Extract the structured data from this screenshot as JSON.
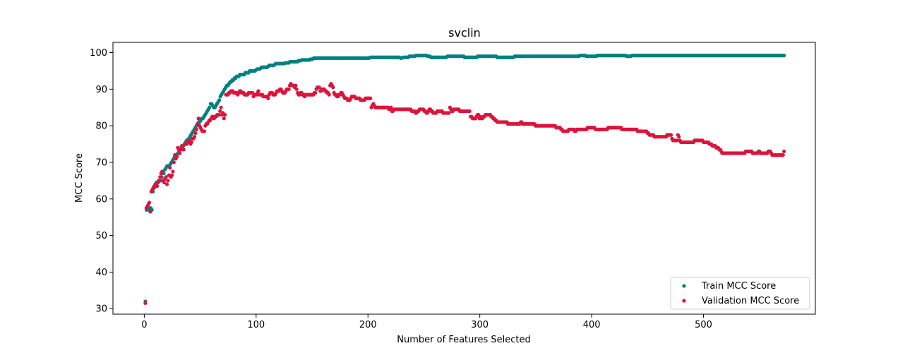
{
  "chart_data": {
    "type": "scatter",
    "title": "svclin",
    "xlabel": "Number of Features Selected",
    "ylabel": "MCC Score",
    "xlim": [
      -28,
      600
    ],
    "ylim": [
      28.5,
      102.8
    ],
    "x_ticks": [
      0,
      100,
      200,
      300,
      400,
      500
    ],
    "x_tick_labels": [
      "0",
      "100",
      "200",
      "300",
      "400",
      "500"
    ],
    "y_ticks": [
      30,
      40,
      50,
      60,
      70,
      80,
      90,
      100
    ],
    "y_tick_labels": [
      "30",
      "40",
      "50",
      "60",
      "70",
      "80",
      "90",
      "100"
    ],
    "grid": false,
    "legend_position": "lower-right",
    "x_range": [
      1,
      572
    ],
    "series": [
      {
        "name": "Train MCC Score",
        "color": "#008080",
        "values": [
          32,
          57,
          57.5,
          57,
          57.5,
          57.5,
          57,
          62,
          63,
          64,
          64.5,
          64.5,
          65,
          65,
          65,
          66,
          67,
          67,
          68,
          68.5,
          69,
          69,
          69,
          69.5,
          70,
          70.5,
          71,
          71.5,
          72,
          72,
          72.5,
          73,
          73.5,
          74,
          74,
          74.5,
          75,
          75.5,
          76,
          76,
          76.5,
          77,
          77.5,
          78,
          78.5,
          79,
          79.5,
          80,
          80.5,
          81,
          81,
          81.5,
          82,
          82,
          82.5,
          83,
          83.5,
          84,
          84.5,
          85,
          86,
          86,
          85.5,
          85,
          85,
          85.5,
          86,
          86.5,
          87,
          88,
          88.5,
          89,
          89.5,
          90,
          90.5,
          91,
          91,
          91.5,
          92,
          92,
          92.5,
          92.5,
          93,
          93,
          93.5,
          93.5,
          93.5,
          94,
          94,
          94,
          94,
          94,
          94.5,
          94.5,
          94.5,
          94.5,
          95,
          95,
          95,
          95,
          95,
          95,
          95.3,
          95.5,
          95.5,
          95.5,
          95.7,
          96,
          96,
          96,
          96,
          96,
          96,
          96.2,
          96.5,
          96.5,
          96.5,
          96.5,
          96.5,
          96.7,
          97,
          97,
          97,
          97,
          97,
          97,
          97,
          97,
          97,
          97.2,
          97.2,
          97.2,
          97.2,
          97.5,
          97.5,
          97.5,
          97.5,
          97.5,
          97.5,
          97.5,
          97.5,
          97.8,
          97.8,
          97.8,
          98,
          98,
          98,
          98,
          98,
          98,
          98,
          98,
          98.2,
          98.2,
          98.2,
          98.5,
          98.5,
          98.5,
          98.5,
          98.5,
          98.5,
          98.5,
          98.5,
          98.5,
          98.5,
          98.5,
          98.5,
          98.5,
          98.5,
          98.5,
          98.5,
          98.5,
          98.5,
          98.5,
          98.5,
          98.5,
          98.5,
          98.5,
          98.5,
          98.5,
          98.5,
          98.5,
          98.5,
          98.5,
          98.5,
          98.5,
          98.5,
          98.5,
          98.5,
          98.5,
          98.5,
          98.5,
          98.5,
          98.5,
          98.5,
          98.5,
          98.5,
          98.5,
          98.5,
          98.5,
          98.5,
          98.5,
          98.5,
          98.5,
          98.5,
          98.5,
          98.5,
          98.7,
          98.7,
          98.7,
          98.7,
          98.7,
          98.7,
          98.7,
          98.7,
          98.7,
          98.7,
          98.7,
          98.7,
          98.7,
          98.7,
          98.7,
          98.7,
          98.7,
          98.7,
          98.7,
          98.7,
          98.7,
          98.7,
          98.7,
          98.7,
          98.7,
          98.7,
          98.7,
          98.7,
          98.5,
          98.5,
          98.7,
          98.7,
          98.7,
          98.7,
          98.7,
          98.7,
          99,
          99,
          99,
          99,
          99,
          99,
          99.2,
          99.2,
          99.2,
          99.2,
          99.2,
          99.2,
          99.2,
          99.2,
          99.2,
          99.2,
          99.2,
          99,
          99,
          99,
          98.7,
          98.7,
          98.7,
          98.7,
          98.7,
          98.7,
          98.7,
          98.7,
          98.7,
          98.7,
          98.7,
          98.7,
          98.7,
          98.7,
          98.7,
          99,
          99,
          99,
          99,
          99,
          99,
          99,
          99,
          99,
          99,
          99,
          99,
          99,
          99,
          99,
          99,
          98.7,
          98.7,
          98.7,
          98.7,
          98.7,
          98.7,
          98.7,
          98.7,
          98.7,
          98.7,
          98.7,
          98.7,
          99,
          99,
          99,
          99,
          99,
          99,
          99,
          99,
          99,
          99,
          99,
          99,
          99,
          99,
          99,
          99,
          99,
          99,
          98.7,
          98.7,
          98.7,
          98.7,
          98.7,
          98.7,
          98.7,
          98.7,
          98.7,
          98.7,
          98.7,
          98.7,
          98.7,
          98.7,
          98.7,
          98.7,
          99,
          99,
          99,
          99,
          99,
          99,
          99,
          99,
          99,
          99,
          99,
          99,
          99,
          99,
          99,
          99,
          99,
          99,
          99,
          99,
          99,
          99,
          99,
          99,
          99,
          99,
          99,
          99,
          99,
          99,
          99,
          99,
          99,
          99,
          99,
          99,
          99,
          99,
          99,
          99,
          99,
          99,
          99,
          99,
          99,
          99,
          99,
          99,
          99,
          99,
          99,
          99,
          99,
          99,
          99,
          99,
          99,
          99,
          99,
          99,
          99.2,
          99.2,
          99.2,
          99.2,
          99.2,
          99.2,
          99,
          99,
          99,
          99,
          99,
          99,
          99,
          99,
          99,
          99,
          99.2,
          99.2,
          99.2,
          99.2,
          99.2,
          99.2,
          99.2,
          99.2,
          99.2,
          99.2,
          99.2,
          99.2,
          99.2,
          99.2,
          99.2,
          99.2,
          99.2,
          99.2,
          99.2,
          99.2,
          99.2,
          99.2,
          99.2,
          99.2,
          99.2,
          99.2,
          99.2,
          99,
          99,
          99,
          99,
          99,
          99.2,
          99.2,
          99.2,
          99.2,
          99.2,
          99.2,
          99.2,
          99.2,
          99.2,
          99.2,
          99.2,
          99.2,
          99.2,
          99.2,
          99.2,
          99.2,
          99.2,
          99.2,
          99.2,
          99.2,
          99.2,
          99.2,
          99.2,
          99.2,
          99.2,
          99.2,
          99.2,
          99.2,
          99.2,
          99.2,
          99.2,
          99.2,
          99.2,
          99.2,
          99.2,
          99.2,
          99.2,
          99.2,
          99.2,
          99.2,
          99.2,
          99.2,
          99.2,
          99.2,
          99.2,
          99.2,
          99.2,
          99.2,
          99.2,
          99.2,
          99.2,
          99.2,
          99.2,
          99.2,
          99.2,
          99.2,
          99.2,
          99.2,
          99.2,
          99.2,
          99.2,
          99.2,
          99.2,
          99.2,
          99.2,
          99.2,
          99.2,
          99.2,
          99.2,
          99.2,
          99.2,
          99.2,
          99.2,
          99.2,
          99.2,
          99.2,
          99.2,
          99.2,
          99.2,
          99.2,
          99.2,
          99.2,
          99.2,
          99.2,
          99.2,
          99.2,
          99.2,
          99.2,
          99.2,
          99.2,
          99.2,
          99.2,
          99.2,
          99.2,
          99.2,
          99.2,
          99.2,
          99.2,
          99.2,
          99.2,
          99.2,
          99.2,
          99.2,
          99.2,
          99.2,
          99.2,
          99.2,
          99.2,
          99.2,
          99.2,
          99.2,
          99.2,
          99.2,
          99.2,
          99.2,
          99.2,
          99.2,
          99.2,
          99.2,
          99.2,
          99.2,
          99.2,
          99.2,
          99.2,
          99.2,
          99.2,
          99.2,
          99.2,
          99.2,
          99.2,
          99.2,
          99.2,
          99.2,
          99.2,
          99.2,
          99.2,
          99.2,
          99.2,
          99.2,
          99.2,
          99.2
        ]
      },
      {
        "name": "Validation MCC Score",
        "color": "#dc143c",
        "values": [
          31.5,
          57.5,
          58,
          58.5,
          59,
          56.5,
          62,
          62.5,
          63,
          63.5,
          63.5,
          64,
          63.5,
          64.5,
          65,
          66,
          67,
          67.5,
          65,
          64.5,
          65.5,
          66,
          64,
          65,
          66.5,
          68.5,
          66,
          66.5,
          67.5,
          70,
          72,
          71,
          71.5,
          74,
          73.5,
          72.5,
          73.5,
          74.5,
          73.5,
          73.5,
          75,
          75,
          75,
          75.5,
          75.5,
          76,
          75,
          75.5,
          76.5,
          76.5,
          77,
          78,
          79,
          80.5,
          82,
          80,
          79.5,
          79,
          78.5,
          78.5,
          78.5,
          80,
          80.5,
          80.5,
          81,
          81.5,
          81.5,
          82,
          82.5,
          82.5,
          82,
          82.5,
          82.5,
          83,
          83,
          83,
          84,
          85,
          83,
          83.5,
          82,
          83,
          88.5,
          88.5,
          88.5,
          89,
          89,
          89.5,
          89.5,
          89.5,
          89,
          89,
          89,
          89,
          88.5,
          89,
          89.5,
          89.5,
          89,
          89,
          89,
          88.5,
          88.5,
          88.5,
          88.5,
          89,
          89,
          89,
          89,
          89,
          88,
          88.5,
          88.5,
          88.5,
          89,
          89.5,
          88.5,
          88.5,
          88.5,
          88.5,
          88,
          88,
          88,
          88,
          88,
          87.5,
          88.5,
          89,
          89,
          89,
          88.5,
          88.5,
          88.5,
          89,
          89.5,
          89.5,
          89.5,
          90,
          90,
          89.5,
          89,
          89,
          89,
          89.5,
          90,
          90,
          90,
          91,
          91.5,
          91,
          91,
          91,
          90.5,
          91,
          90,
          89,
          88.5,
          88.5,
          89,
          89,
          88.5,
          88.5,
          88,
          88.5,
          88.5,
          88.5,
          88.5,
          88.5,
          88.5,
          88.5,
          88.5,
          88.5,
          89,
          89,
          90,
          90.5,
          90.5,
          90.5,
          89.5,
          89.5,
          90,
          90,
          90,
          89.5,
          89.5,
          89,
          89,
          88.5,
          91,
          91.5,
          91,
          90.5,
          89,
          88.5,
          88.5,
          88,
          88,
          88.5,
          88.5,
          89,
          89,
          88.5,
          88,
          87.5,
          87.5,
          87.5,
          87,
          87,
          87,
          87.5,
          88,
          88,
          88,
          88,
          87.5,
          87.5,
          87.5,
          87.5,
          87.5,
          87,
          87,
          87,
          87,
          87,
          87.5,
          87.5,
          87.5,
          87.5,
          87.5,
          87.5,
          85,
          85.5,
          86,
          85.5,
          85,
          85,
          85,
          85,
          85,
          85,
          85,
          85,
          85,
          85,
          85,
          85,
          85,
          85,
          84.5,
          84.5,
          85,
          84,
          84,
          84.5,
          84.5,
          84.5,
          84.5,
          84.5,
          84.5,
          84.5,
          84.5,
          84.5,
          84.5,
          84.5,
          84.5,
          84.5,
          84.5,
          84.5,
          84.5,
          84.5,
          84.5,
          84,
          84,
          84,
          84,
          83.5,
          83.5,
          84,
          84,
          84.5,
          84.5,
          84.5,
          84.5,
          84.5,
          84,
          84,
          83.5,
          83.5,
          84,
          84.5,
          84.5,
          84,
          84,
          83.5,
          83.5,
          83.5,
          83.5,
          84,
          84,
          84,
          84,
          84,
          84,
          83.5,
          83.5,
          83.5,
          83.5,
          83.5,
          83.5,
          83.5,
          85,
          84.5,
          84,
          84,
          84.5,
          84.5,
          84.5,
          84.5,
          84.5,
          84.5,
          84,
          84,
          84,
          84,
          84,
          84,
          84,
          84,
          84,
          84,
          84,
          82.5,
          82.5,
          82,
          82,
          82,
          82,
          82.5,
          83,
          83,
          82,
          82.5,
          82,
          82,
          82.5,
          82.5,
          83,
          83,
          83,
          83,
          83,
          83,
          82.5,
          82.5,
          82,
          82,
          81.5,
          81.5,
          81,
          81,
          81,
          81,
          81,
          81,
          81,
          81,
          81,
          81,
          81,
          80.5,
          80.5,
          80.5,
          80.5,
          80.5,
          80.5,
          80.5,
          80.5,
          80.5,
          80.5,
          80.5,
          80.5,
          80.5,
          81,
          81,
          80.5,
          80.5,
          80.5,
          80.5,
          80.5,
          80.5,
          80.5,
          80.5,
          80.5,
          80.5,
          80.5,
          80.5,
          80.5,
          80,
          80,
          80,
          80,
          80,
          80,
          80,
          80,
          80,
          80,
          80,
          80,
          80,
          80,
          80,
          80,
          80,
          80,
          80,
          80,
          80,
          79.5,
          79.5,
          79.5,
          79.5,
          79.5,
          79,
          79,
          78.5,
          78.5,
          78.5,
          78.5,
          78.5,
          78.5,
          79,
          79,
          79,
          79,
          79,
          79,
          78.5,
          78.5,
          79,
          79,
          79,
          79,
          79,
          79,
          79,
          79,
          79,
          79,
          79,
          79.5,
          79.5,
          79.5,
          79.5,
          79.5,
          79.5,
          79.5,
          79.5,
          79,
          79,
          79,
          79,
          79,
          79,
          79,
          79,
          79,
          79,
          79,
          79,
          79,
          79.5,
          79.5,
          79.5,
          79.5,
          79.5,
          79.5,
          79.5,
          79.5,
          79.5,
          79.5,
          79.5,
          79.5,
          79.5,
          79.5,
          79,
          79,
          79,
          79,
          79,
          79,
          79,
          79,
          79,
          79,
          79,
          79,
          79,
          79,
          79,
          79,
          78.5,
          78.5,
          78.5,
          78.5,
          78.5,
          78.5,
          78.5,
          78.5,
          78.5,
          78.5,
          78,
          78,
          77.5,
          77.5,
          77.5,
          77.5,
          77.5,
          77,
          77,
          77,
          77,
          77,
          77,
          77,
          77,
          77,
          77,
          77,
          77,
          77,
          77.5,
          77.5,
          77.5,
          77.5,
          77.5,
          76.5,
          76,
          76,
          76,
          76,
          76,
          77.5,
          77,
          76,
          75.5,
          75.5,
          75.5,
          75.5,
          75.5,
          75.5,
          75.5,
          75.5,
          75.5,
          75.5,
          75.5,
          75.5,
          75.5,
          75.5,
          76,
          76,
          76,
          76,
          76,
          76,
          76,
          76,
          76,
          75.5,
          75.5,
          75.5,
          75.5,
          75.5,
          75.5,
          75,
          75,
          75,
          74.5,
          74.5,
          74.5,
          74.5,
          74,
          74,
          74,
          73.5,
          73.5,
          73,
          72.5,
          72.5,
          72.5,
          72.5,
          72.5,
          72.5,
          72.5,
          72.5,
          72.5,
          72.5,
          72.5,
          72.5,
          72.5,
          72.5,
          72.5,
          72.5,
          72.5,
          72.5,
          72.5,
          72.5,
          72.5,
          72.5,
          72.5,
          72.5,
          73,
          73,
          73,
          73,
          73,
          73,
          73,
          72.5,
          72.5,
          72.5,
          72.5,
          72.5,
          72.5,
          73,
          73,
          72.5,
          72.5,
          72.5,
          72.5,
          72.5,
          72.5,
          72.5,
          72.5,
          73,
          73,
          73,
          72.5,
          72,
          72,
          72,
          72,
          72,
          72,
          72,
          72,
          72,
          72,
          72,
          72,
          73
        ]
      }
    ]
  }
}
